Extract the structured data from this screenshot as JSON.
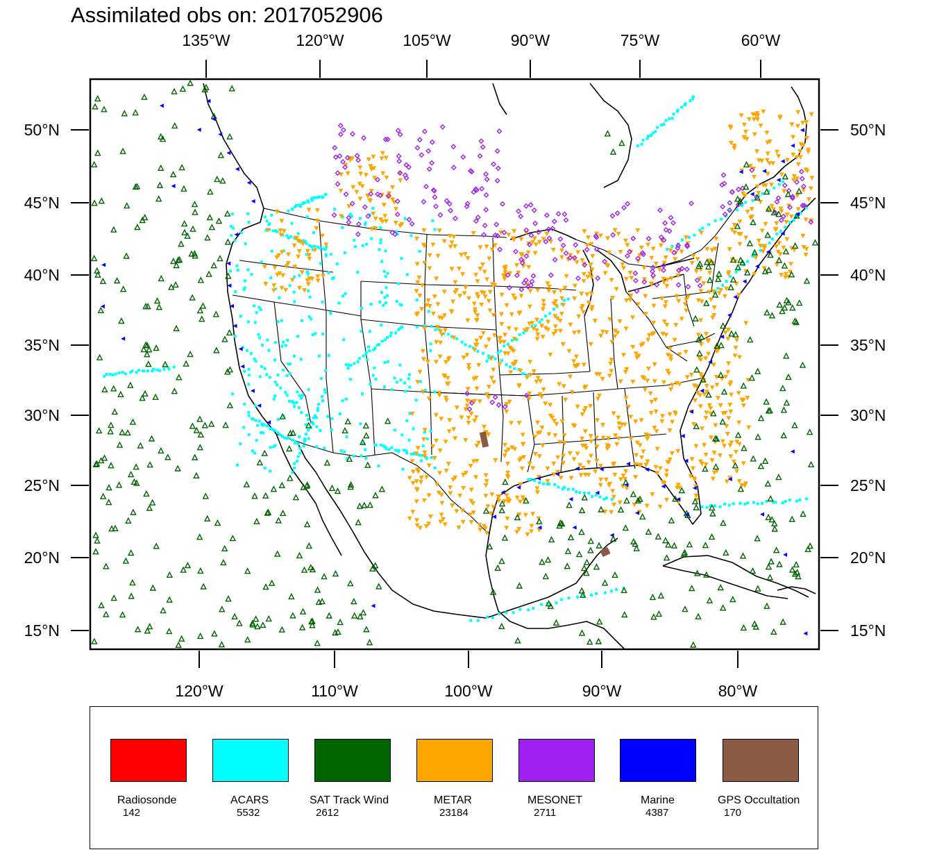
{
  "title": "Assimilated obs on: 2017052906",
  "axes": {
    "top_lon_labels": [
      "135°W",
      "120°W",
      "105°W",
      "90°W",
      "75°W",
      "60°W"
    ],
    "bottom_lon_labels": [
      "120°W",
      "110°W",
      "100°W",
      "90°W",
      "80°W"
    ],
    "lat_labels": [
      "50°N",
      "45°N",
      "40°N",
      "35°N",
      "30°N",
      "25°N",
      "20°N",
      "15°N"
    ]
  },
  "legend": [
    {
      "name": "Radiosonde",
      "count": "142",
      "color": "#ff0000"
    },
    {
      "name": "ACARS",
      "count": "5532",
      "color": "#00ffff"
    },
    {
      "name": "SAT Track Wind",
      "count": "2612",
      "color": "#006400"
    },
    {
      "name": "METAR",
      "count": "23184",
      "color": "#ffa500"
    },
    {
      "name": "MESONET",
      "count": "2711",
      "color": "#a020f0"
    },
    {
      "name": "Marine",
      "count": "4387",
      "color": "#0000ff"
    },
    {
      "name": "GPS Occultation",
      "count": "170",
      "color": "#8b5a45"
    }
  ]
}
